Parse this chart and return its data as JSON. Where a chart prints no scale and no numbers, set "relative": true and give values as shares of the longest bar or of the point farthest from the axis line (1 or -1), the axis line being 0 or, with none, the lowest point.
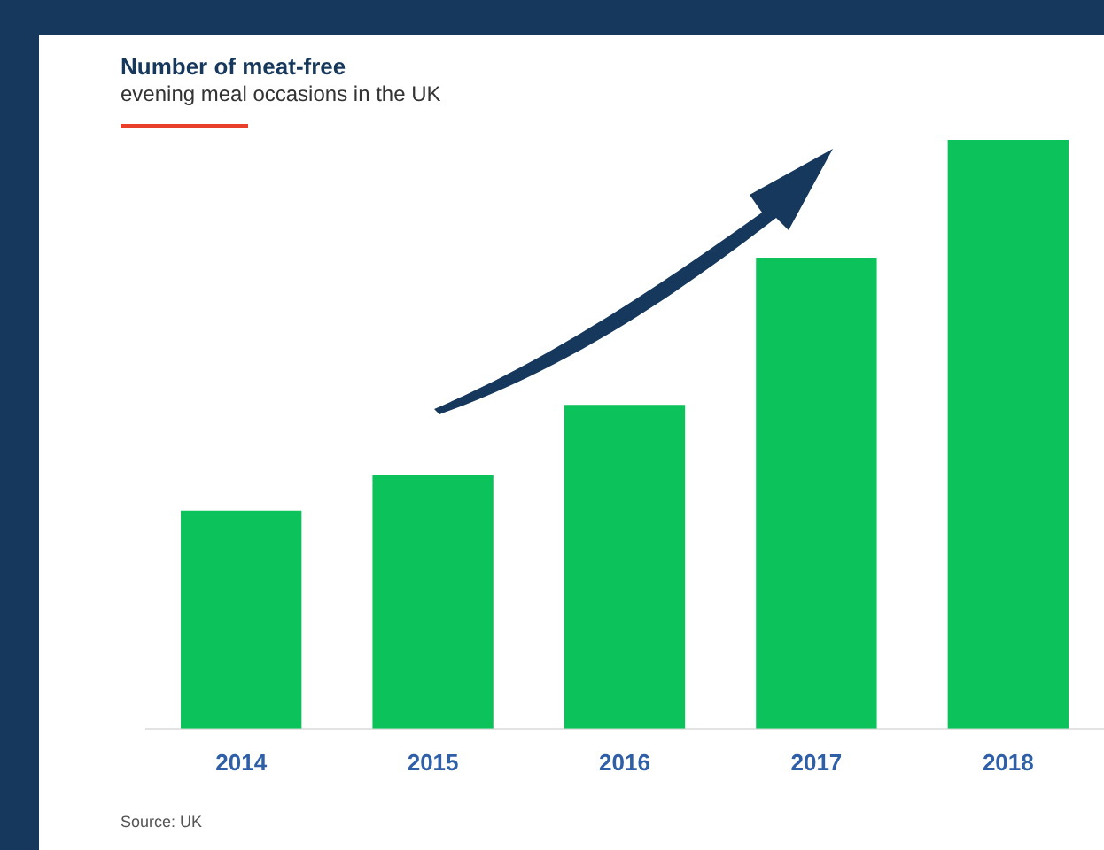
{
  "chart_data": {
    "type": "bar",
    "title": "Number of meat-free",
    "subtitle": "evening meal occasions in the UK",
    "categories": [
      "2014",
      "2015",
      "2016",
      "2017",
      "2018"
    ],
    "values": [
      0.37,
      0.43,
      0.55,
      0.8,
      1
    ],
    "color": "#0cc25a",
    "relative": true,
    "annotations": [
      "Source: UK"
    ]
  }
}
